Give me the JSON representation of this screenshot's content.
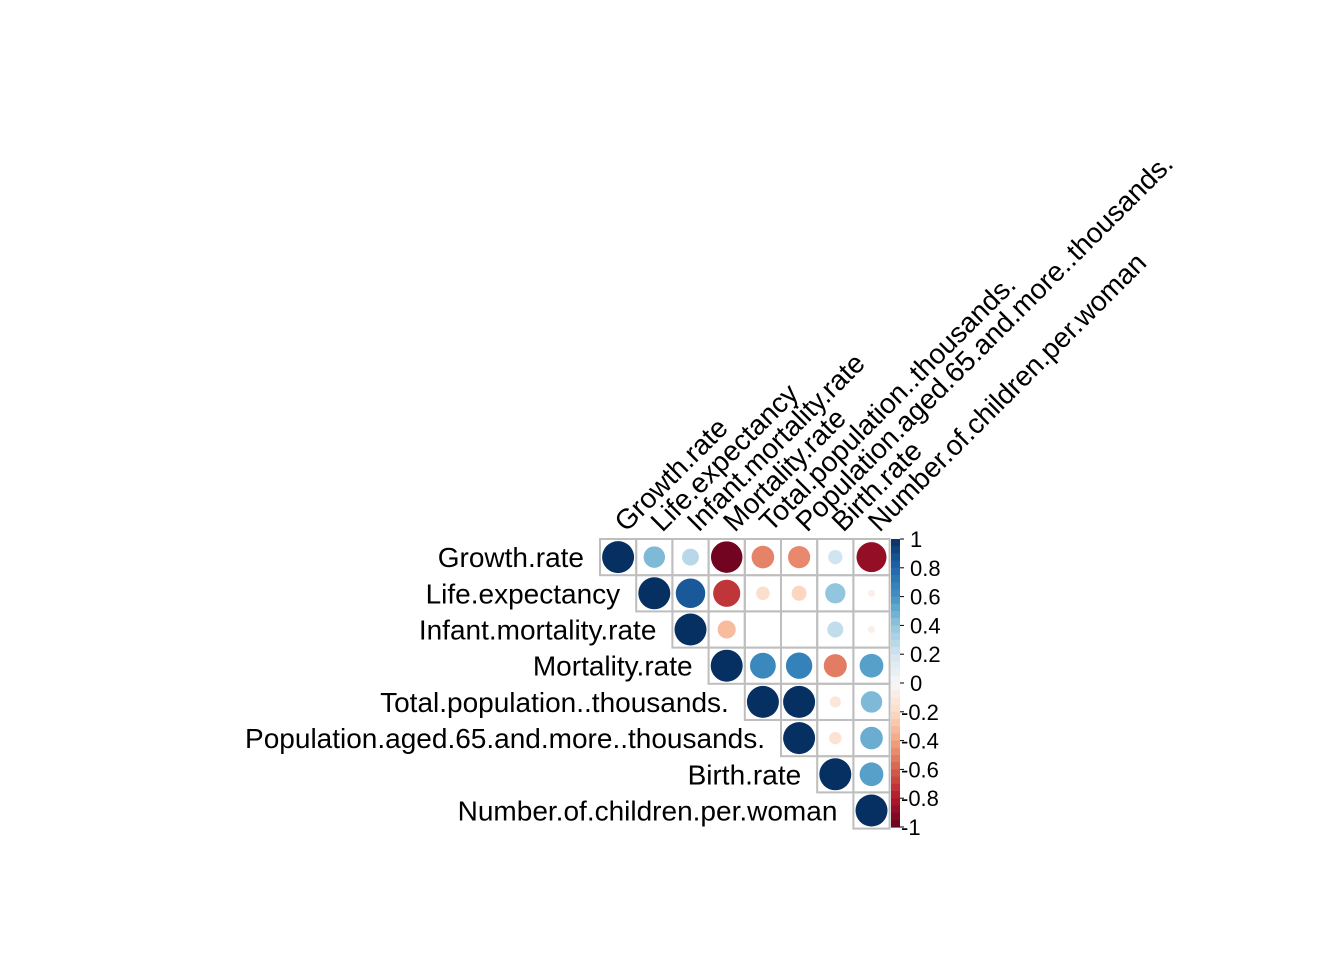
{
  "chart_data": {
    "type": "heatmap",
    "layout": "upper-triangle correlation matrix with circle glyphs",
    "variables": [
      "Growth.rate",
      "Life.expectancy",
      "Infant.mortality.rate",
      "Mortality.rate",
      "Total.population..thousands.",
      "Population.aged.65.and.more..thousands.",
      "Birth.rate",
      "Number.of.children.per.woman"
    ],
    "matrix": [
      [
        1.0,
        0.45,
        0.28,
        -0.97,
        -0.5,
        -0.48,
        0.2,
        -0.88
      ],
      [
        null,
        1.0,
        0.85,
        -0.72,
        -0.18,
        -0.22,
        0.4,
        -0.05
      ],
      [
        null,
        null,
        1.0,
        -0.32,
        0.0,
        0.0,
        0.25,
        -0.05
      ],
      [
        null,
        null,
        null,
        1.0,
        0.65,
        0.68,
        -0.52,
        0.55
      ],
      [
        null,
        null,
        null,
        null,
        1.0,
        1.0,
        -0.12,
        0.45
      ],
      [
        null,
        null,
        null,
        null,
        null,
        1.0,
        -0.15,
        0.5
      ],
      [
        null,
        null,
        null,
        null,
        null,
        null,
        1.0,
        0.55
      ],
      [
        null,
        null,
        null,
        null,
        null,
        null,
        null,
        1.0
      ]
    ],
    "legend": {
      "ticks": [
        "1",
        "0.8",
        "0.6",
        "0.4",
        "0.2",
        "0",
        "-0.2",
        "-0.4",
        "-0.6",
        "-0.8",
        "-1"
      ],
      "range": [
        -1,
        1
      ],
      "placement": "right"
    },
    "colors": {
      "positive_strong": "#053061",
      "positive_mid": "#4393c3",
      "neutral": "#f7f7f7",
      "negative_mid": "#d6604d",
      "negative_strong": "#67001f",
      "grid": "#bebebe"
    }
  }
}
